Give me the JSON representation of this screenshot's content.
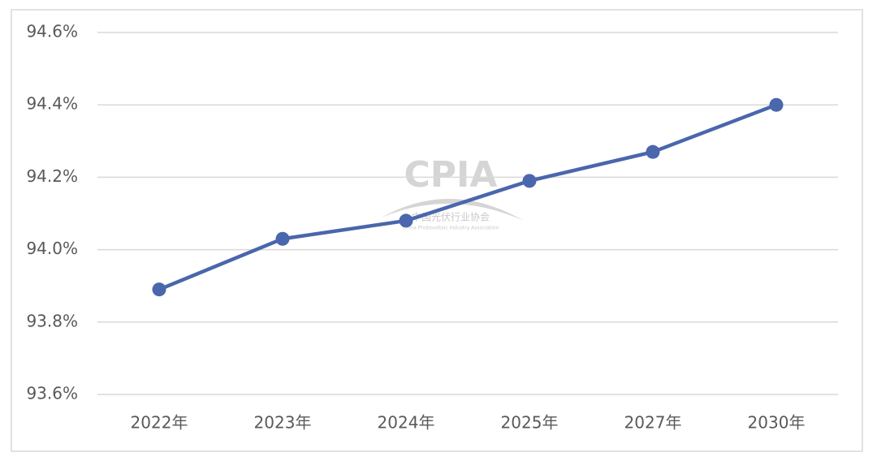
{
  "chart_data": {
    "type": "line",
    "categories": [
      "2022年",
      "2023年",
      "2024年",
      "2025年",
      "2027年",
      "2030年"
    ],
    "series": [
      {
        "color": "#4a66ac",
        "values": [
          93.89,
          94.03,
          94.08,
          94.19,
          94.27,
          94.4
        ]
      }
    ],
    "ylim": [
      93.6,
      94.6
    ],
    "yticks": [
      {
        "value": 93.6,
        "label": "93.6%"
      },
      {
        "value": 93.8,
        "label": "93.8%"
      },
      {
        "value": 94.0,
        "label": "94.0%"
      },
      {
        "value": 94.2,
        "label": "94.2%"
      },
      {
        "value": 94.4,
        "label": "94.4%"
      },
      {
        "value": 94.6,
        "label": "94.6%"
      }
    ],
    "grid": true,
    "watermark": {
      "logo": "CPIA",
      "name": "中国光伏行业协会",
      "name_en": "China Photovoltaic Industry Association"
    }
  }
}
